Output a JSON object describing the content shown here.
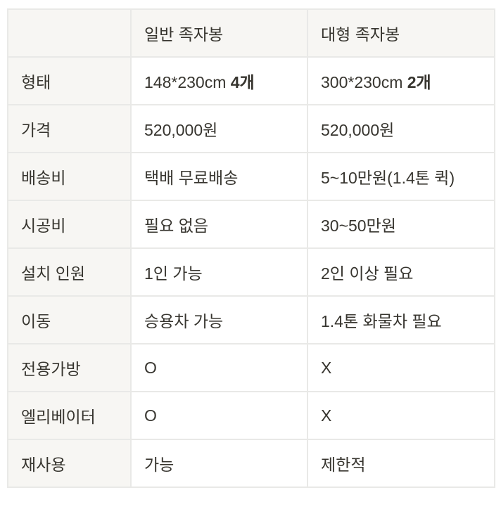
{
  "table": {
    "headers": [
      "",
      "일반 족자봉",
      "대형 족자봉"
    ],
    "rows": [
      {
        "label": "형태",
        "general": "148*230cm ",
        "general_bold": "4개",
        "large": "300*230cm ",
        "large_bold": "2개"
      },
      {
        "label": "가격",
        "general": "520,000원",
        "large": "520,000원"
      },
      {
        "label": "배송비",
        "general": "택배 무료배송",
        "large": "5~10만원(1.4톤 퀵)"
      },
      {
        "label": "시공비",
        "general": "필요 없음",
        "large": "30~50만원"
      },
      {
        "label": "설치 인원",
        "general": "1인 가능",
        "large": "2인 이상 필요"
      },
      {
        "label": "이동",
        "general": "승용차 가능",
        "large": "1.4톤 화물차 필요"
      },
      {
        "label": "전용가방",
        "general": "O",
        "large": "X"
      },
      {
        "label": "엘리베이터",
        "general": "O",
        "large": "X"
      },
      {
        "label": "재사용",
        "general": "가능",
        "large": "제한적"
      }
    ]
  }
}
